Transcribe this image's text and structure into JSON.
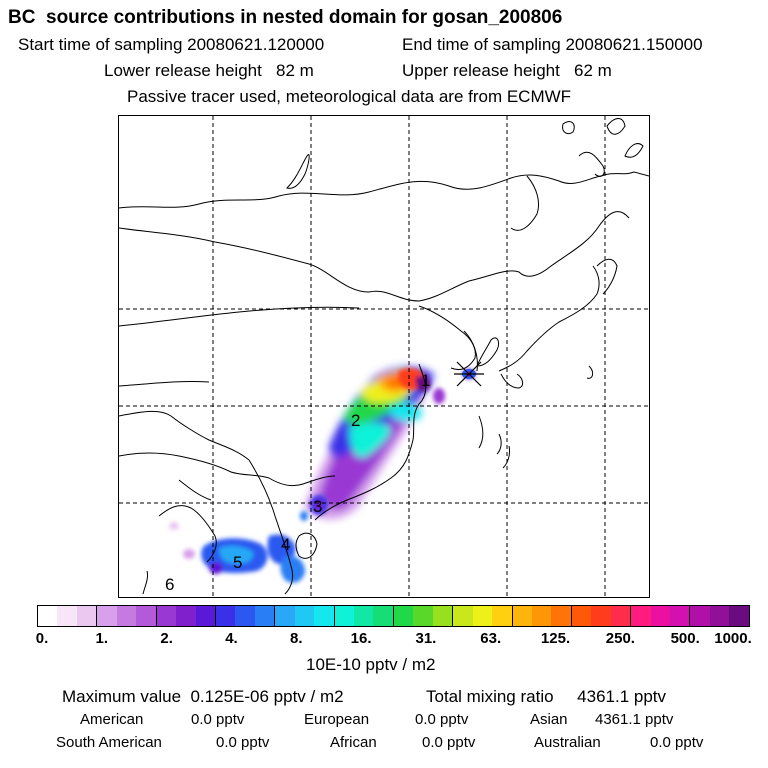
{
  "title": "BC  source contributions in nested domain for gosan_200806",
  "header": {
    "start_label": "Start time of sampling 20080621.120000",
    "end_label": "End time of sampling 20080621.150000",
    "lower_label": "Lower release height   82 m",
    "upper_label": "Upper release height   62 m",
    "note": "Passive tracer used, meteorological data are from ECMWF"
  },
  "map": {
    "region_labels": [
      "1",
      "2",
      "3",
      "4",
      "5",
      "6"
    ]
  },
  "colorbar": {
    "colors": [
      "#ffffff",
      "#f6e6f8",
      "#eac8f0",
      "#d8a0ea",
      "#c57ae2",
      "#b25ada",
      "#9a38d4",
      "#8020cc",
      "#5a18d8",
      "#3a30e8",
      "#2a58f0",
      "#2a7ef4",
      "#28a8f6",
      "#20c8f4",
      "#16e6ee",
      "#10f2d8",
      "#12e8a6",
      "#16de74",
      "#20d848",
      "#5ad82a",
      "#96e01e",
      "#c8e81c",
      "#eef01a",
      "#ffd010",
      "#ffb40c",
      "#ff9608",
      "#ff7406",
      "#ff5808",
      "#ff3c1c",
      "#ff2c4c",
      "#ff1c7e",
      "#ec10a0",
      "#d410b0",
      "#b010a8",
      "#90109a",
      "#6a0c80"
    ],
    "ticks": [
      "0.",
      "1.",
      "2.",
      "4.",
      "8.",
      "16.",
      "31.",
      "63.",
      "125.",
      "250.",
      "500.",
      "1000."
    ],
    "unit": "10E-10 pptv / m2"
  },
  "footer": {
    "max_value": "Maximum value  0.125E-06 pptv / m2",
    "total_mixing": "Total mixing ratio     4361.1 pptv",
    "american": "American",
    "american_val": "0.0 pptv",
    "european": "European",
    "european_val": "0.0 pptv",
    "asian": "Asian",
    "asian_val": "4361.1 pptv",
    "south_american": "South American",
    "south_american_val": "0.0 pptv",
    "african": "African",
    "african_val": "0.0 pptv",
    "australian": "Australian",
    "australian_val": "0.0 pptv"
  }
}
